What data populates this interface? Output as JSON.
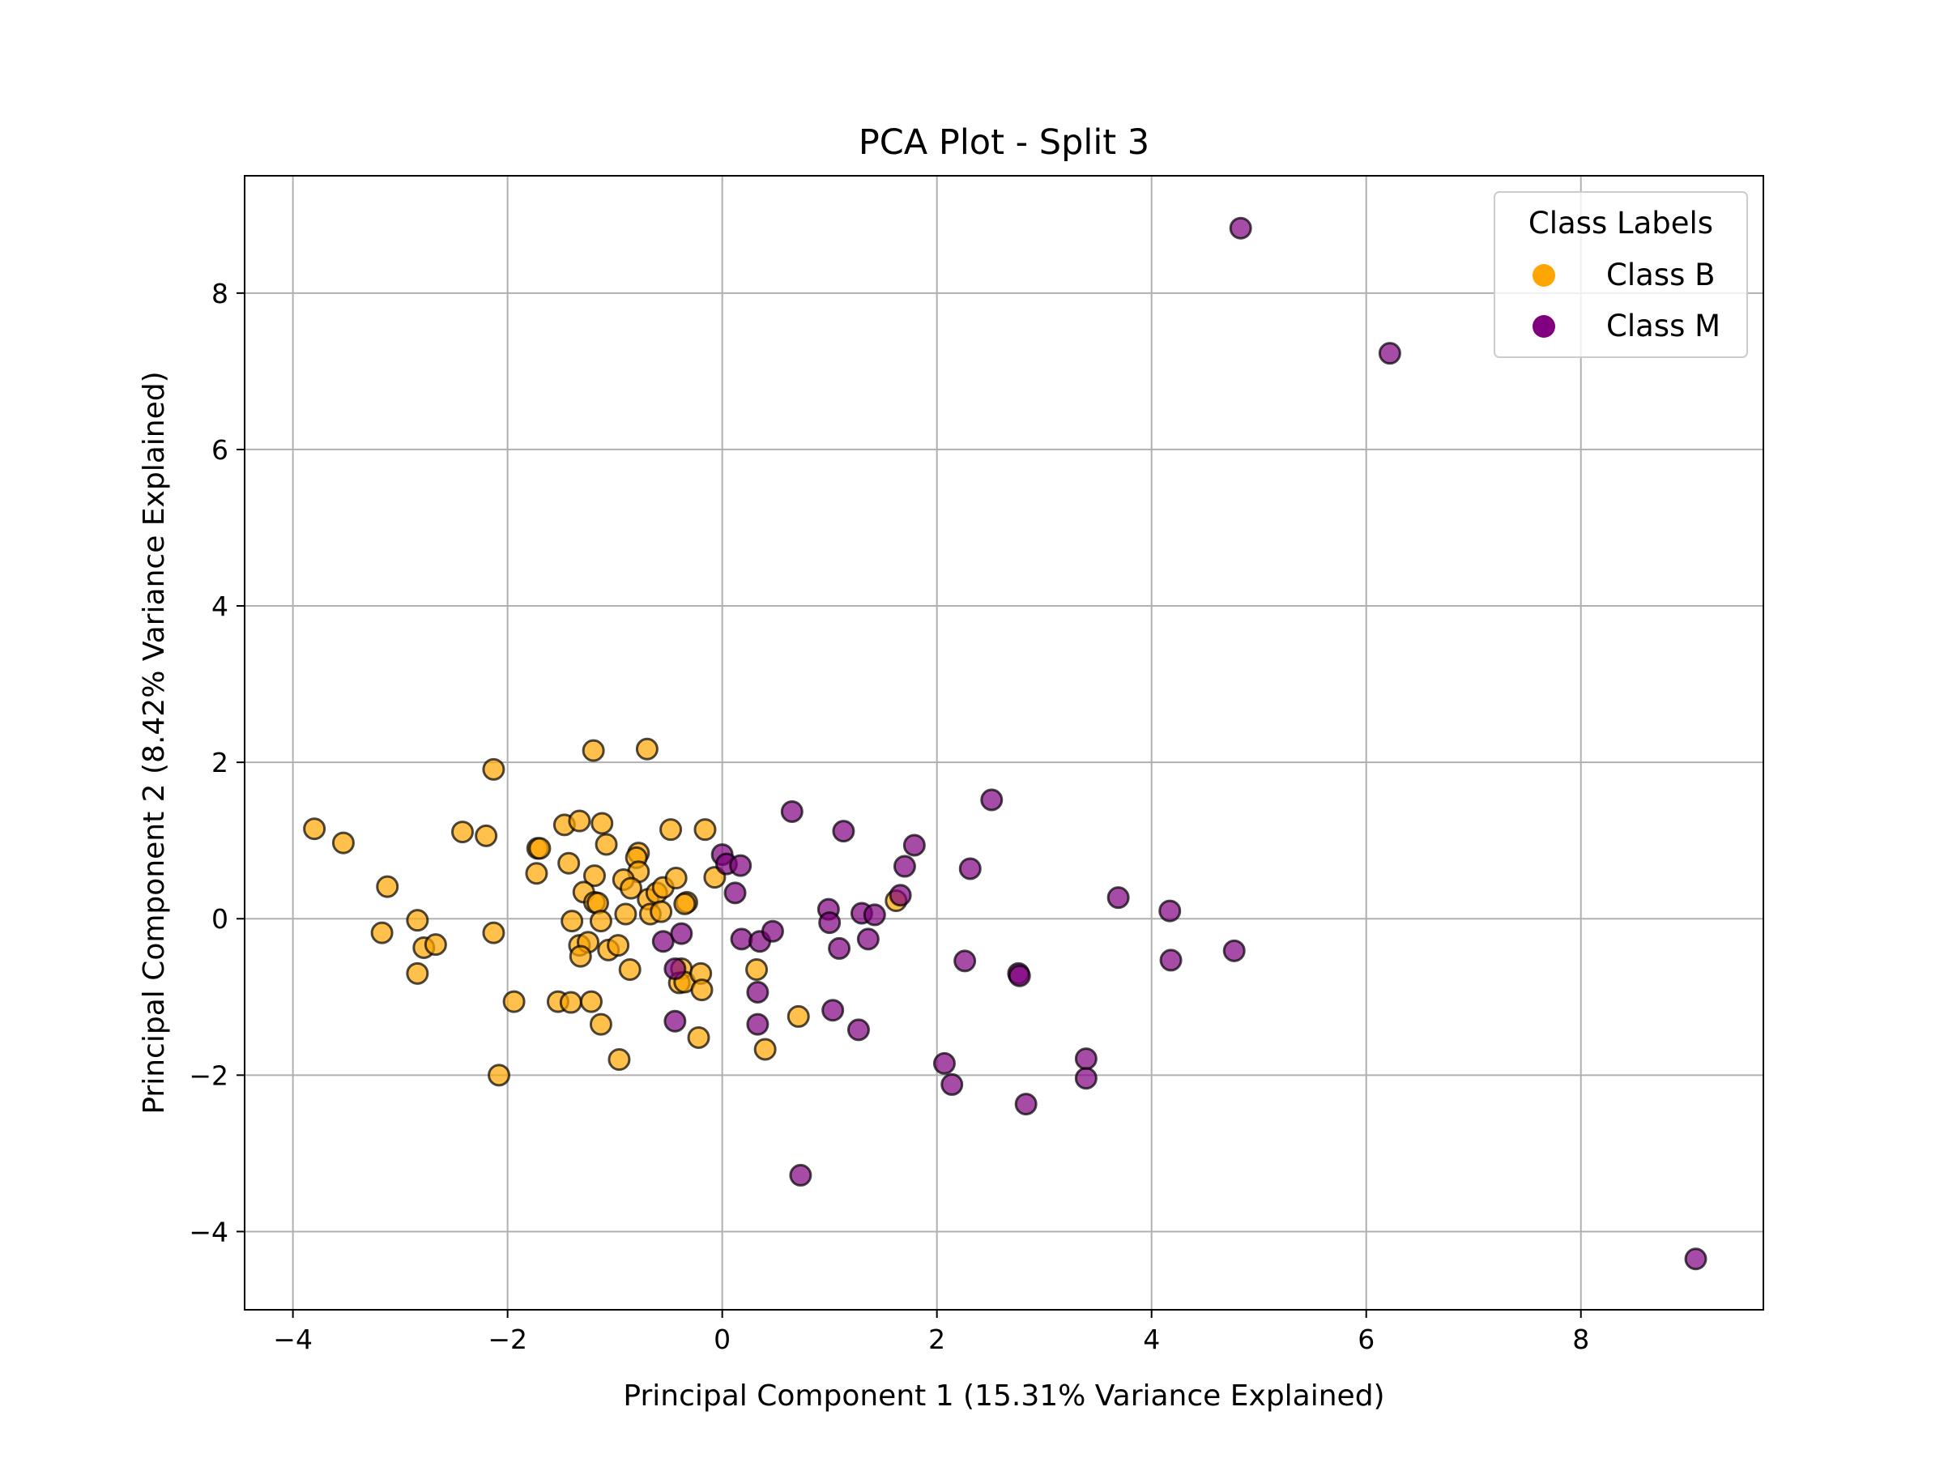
{
  "chart_data": {
    "type": "scatter",
    "title": "PCA Plot - Split 3",
    "xlabel": "Principal Component 1 (15.31% Variance Explained)",
    "ylabel": "Principal Component 2 (8.42% Variance Explained)",
    "xlim": [
      -4.45,
      9.7
    ],
    "ylim": [
      -5.0,
      9.5
    ],
    "xticks": [
      -4,
      -2,
      0,
      2,
      4,
      6,
      8
    ],
    "xtick_labels": [
      "−4",
      "−2",
      "0",
      "2",
      "4",
      "6",
      "8"
    ],
    "yticks": [
      -4,
      -2,
      0,
      2,
      4,
      6,
      8
    ],
    "ytick_labels": [
      "−4",
      "−2",
      "0",
      "2",
      "4",
      "6",
      "8"
    ],
    "grid": true,
    "legend": {
      "title": "Class Labels",
      "placement": "top-right"
    },
    "series": [
      {
        "name": "Class B",
        "color": "#ffa500",
        "points": [
          [
            -3.8,
            1.15
          ],
          [
            -3.53,
            0.97
          ],
          [
            -3.12,
            0.41
          ],
          [
            -3.17,
            -0.18
          ],
          [
            -2.84,
            -0.02
          ],
          [
            -2.78,
            -0.37
          ],
          [
            -2.67,
            -0.33
          ],
          [
            -2.84,
            -0.7
          ],
          [
            -2.42,
            1.11
          ],
          [
            -2.2,
            1.06
          ],
          [
            -2.13,
            1.91
          ],
          [
            -2.13,
            -0.18
          ],
          [
            -1.94,
            -1.06
          ],
          [
            -2.08,
            -2.0
          ],
          [
            -1.72,
            0.9
          ],
          [
            -1.7,
            0.9
          ],
          [
            -1.73,
            0.58
          ],
          [
            -1.47,
            1.2
          ],
          [
            -1.43,
            0.71
          ],
          [
            -1.33,
            1.25
          ],
          [
            -1.2,
            2.15
          ],
          [
            -1.12,
            1.22
          ],
          [
            -1.08,
            0.95
          ],
          [
            -1.19,
            0.55
          ],
          [
            -1.29,
            0.34
          ],
          [
            -1.19,
            0.21
          ],
          [
            -1.16,
            0.2
          ],
          [
            -1.4,
            -0.03
          ],
          [
            -1.13,
            -0.03
          ],
          [
            -1.33,
            -0.34
          ],
          [
            -1.25,
            -0.3
          ],
          [
            -1.32,
            -0.48
          ],
          [
            -1.06,
            -0.4
          ],
          [
            -0.97,
            -0.34
          ],
          [
            -1.53,
            -1.06
          ],
          [
            -1.41,
            -1.07
          ],
          [
            -1.22,
            -1.06
          ],
          [
            -1.13,
            -1.35
          ],
          [
            -0.96,
            -1.8
          ],
          [
            -0.7,
            2.17
          ],
          [
            -0.78,
            0.84
          ],
          [
            -0.8,
            0.78
          ],
          [
            -0.78,
            0.6
          ],
          [
            -0.92,
            0.5
          ],
          [
            -0.85,
            0.39
          ],
          [
            -0.69,
            0.25
          ],
          [
            -0.61,
            0.33
          ],
          [
            -0.55,
            0.4
          ],
          [
            -0.9,
            0.06
          ],
          [
            -0.67,
            0.06
          ],
          [
            -0.57,
            0.09
          ],
          [
            -0.48,
            1.14
          ],
          [
            -0.43,
            0.52
          ],
          [
            -0.33,
            0.21
          ],
          [
            -0.35,
            0.19
          ],
          [
            -0.86,
            -0.65
          ],
          [
            -0.38,
            -0.64
          ],
          [
            -0.4,
            -0.82
          ],
          [
            -0.35,
            -0.81
          ],
          [
            -0.2,
            -0.7
          ],
          [
            -0.19,
            -0.91
          ],
          [
            -0.22,
            -1.52
          ],
          [
            -0.16,
            1.14
          ],
          [
            -0.07,
            0.53
          ],
          [
            0.32,
            -0.65
          ],
          [
            0.4,
            -1.67
          ],
          [
            0.71,
            -1.25
          ],
          [
            1.62,
            0.23
          ]
        ]
      },
      {
        "name": "Class M",
        "color": "#800080",
        "points": [
          [
            4.83,
            8.83
          ],
          [
            6.22,
            7.23
          ],
          [
            2.51,
            1.52
          ],
          [
            0.65,
            1.37
          ],
          [
            1.13,
            1.12
          ],
          [
            1.79,
            0.94
          ],
          [
            1.7,
            0.67
          ],
          [
            2.31,
            0.64
          ],
          [
            0.0,
            0.82
          ],
          [
            0.04,
            0.7
          ],
          [
            0.17,
            0.68
          ],
          [
            0.12,
            0.33
          ],
          [
            1.66,
            0.3
          ],
          [
            3.69,
            0.27
          ],
          [
            4.17,
            0.1
          ],
          [
            0.99,
            0.12
          ],
          [
            1.3,
            0.07
          ],
          [
            1.42,
            0.05
          ],
          [
            1.0,
            -0.05
          ],
          [
            -0.55,
            -0.29
          ],
          [
            -0.38,
            -0.19
          ],
          [
            0.18,
            -0.26
          ],
          [
            0.35,
            -0.29
          ],
          [
            0.47,
            -0.16
          ],
          [
            1.09,
            -0.38
          ],
          [
            1.36,
            -0.26
          ],
          [
            4.18,
            -0.53
          ],
          [
            4.77,
            -0.41
          ],
          [
            2.26,
            -0.54
          ],
          [
            2.76,
            -0.7
          ],
          [
            2.77,
            -0.73
          ],
          [
            -0.44,
            -0.64
          ],
          [
            0.33,
            -0.94
          ],
          [
            1.03,
            -1.17
          ],
          [
            0.33,
            -1.35
          ],
          [
            -0.44,
            -1.31
          ],
          [
            1.27,
            -1.42
          ],
          [
            2.07,
            -1.85
          ],
          [
            2.14,
            -2.12
          ],
          [
            2.83,
            -2.37
          ],
          [
            3.39,
            -1.79
          ],
          [
            3.39,
            -2.04
          ],
          [
            0.73,
            -3.28
          ],
          [
            9.07,
            -4.35
          ]
        ]
      }
    ]
  }
}
